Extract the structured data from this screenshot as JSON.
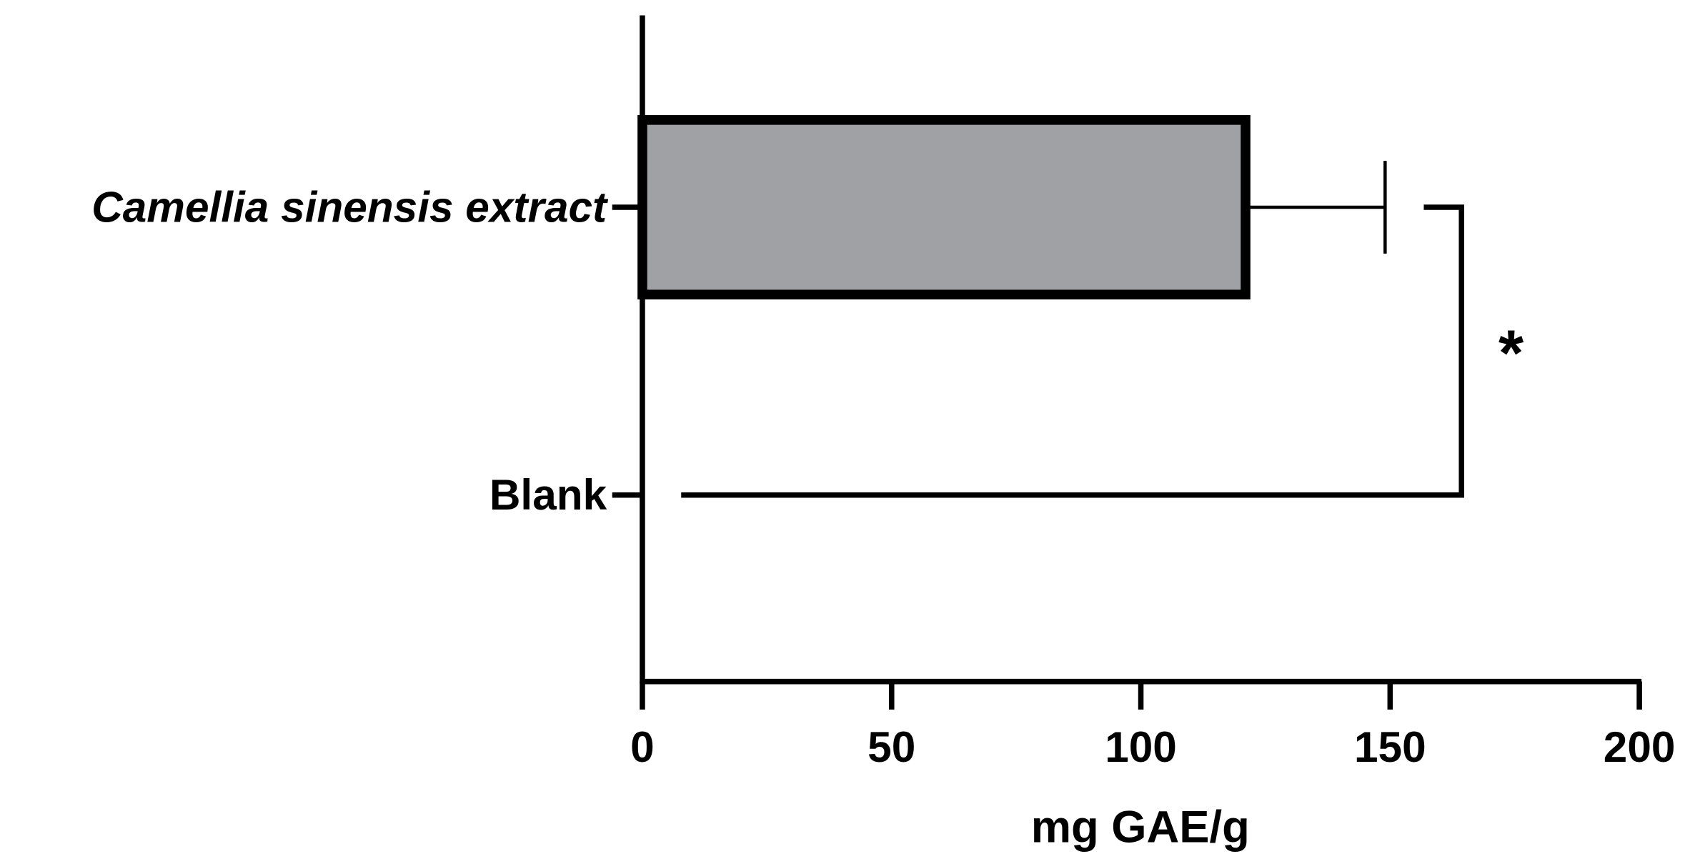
{
  "chart_data": {
    "type": "hbar",
    "categories": [
      "Camellia sinensis extract",
      "Blank"
    ],
    "values": [
      121,
      0
    ],
    "errors": [
      28,
      null
    ],
    "color": "#a0a1a5",
    "xlabel": "mg GAE/g",
    "xlim": [
      0,
      200
    ],
    "xticks": [
      0,
      50,
      100,
      150,
      200
    ],
    "annotation": "*"
  }
}
